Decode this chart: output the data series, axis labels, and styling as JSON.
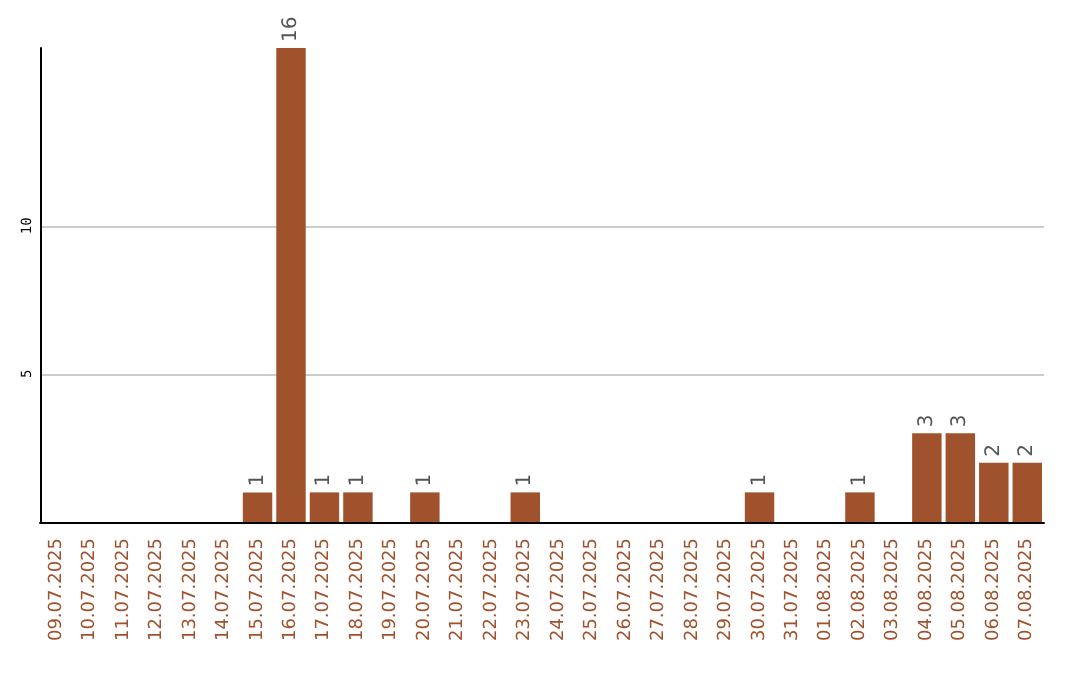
{
  "chart_data": {
    "type": "bar",
    "categories": [
      "09.07.2025",
      "10.07.2025",
      "11.07.2025",
      "12.07.2025",
      "13.07.2025",
      "14.07.2025",
      "15.07.2025",
      "16.07.2025",
      "17.07.2025",
      "18.07.2025",
      "19.07.2025",
      "20.07.2025",
      "21.07.2025",
      "22.07.2025",
      "23.07.2025",
      "24.07.2025",
      "25.07.2025",
      "26.07.2025",
      "27.07.2025",
      "28.07.2025",
      "29.07.2025",
      "30.07.2025",
      "31.07.2025",
      "01.08.2025",
      "02.08.2025",
      "03.08.2025",
      "04.08.2025",
      "05.08.2025",
      "06.08.2025",
      "07.08.2025"
    ],
    "values": [
      0,
      0,
      0,
      0,
      0,
      0,
      1,
      16,
      1,
      1,
      0,
      1,
      0,
      0,
      1,
      0,
      0,
      0,
      0,
      0,
      0,
      1,
      0,
      0,
      1,
      0,
      3,
      3,
      2,
      2
    ],
    "value_labels": [
      null,
      null,
      null,
      null,
      null,
      null,
      "1",
      "16",
      "1",
      "1",
      null,
      "1",
      null,
      null,
      "1",
      null,
      null,
      null,
      null,
      null,
      null,
      "1",
      null,
      null,
      "1",
      null,
      "3",
      "3",
      "2",
      "2"
    ],
    "color": "#a0522d",
    "ylim": [
      0,
      16
    ],
    "yticks": [
      5,
      10
    ],
    "grid": "y"
  }
}
